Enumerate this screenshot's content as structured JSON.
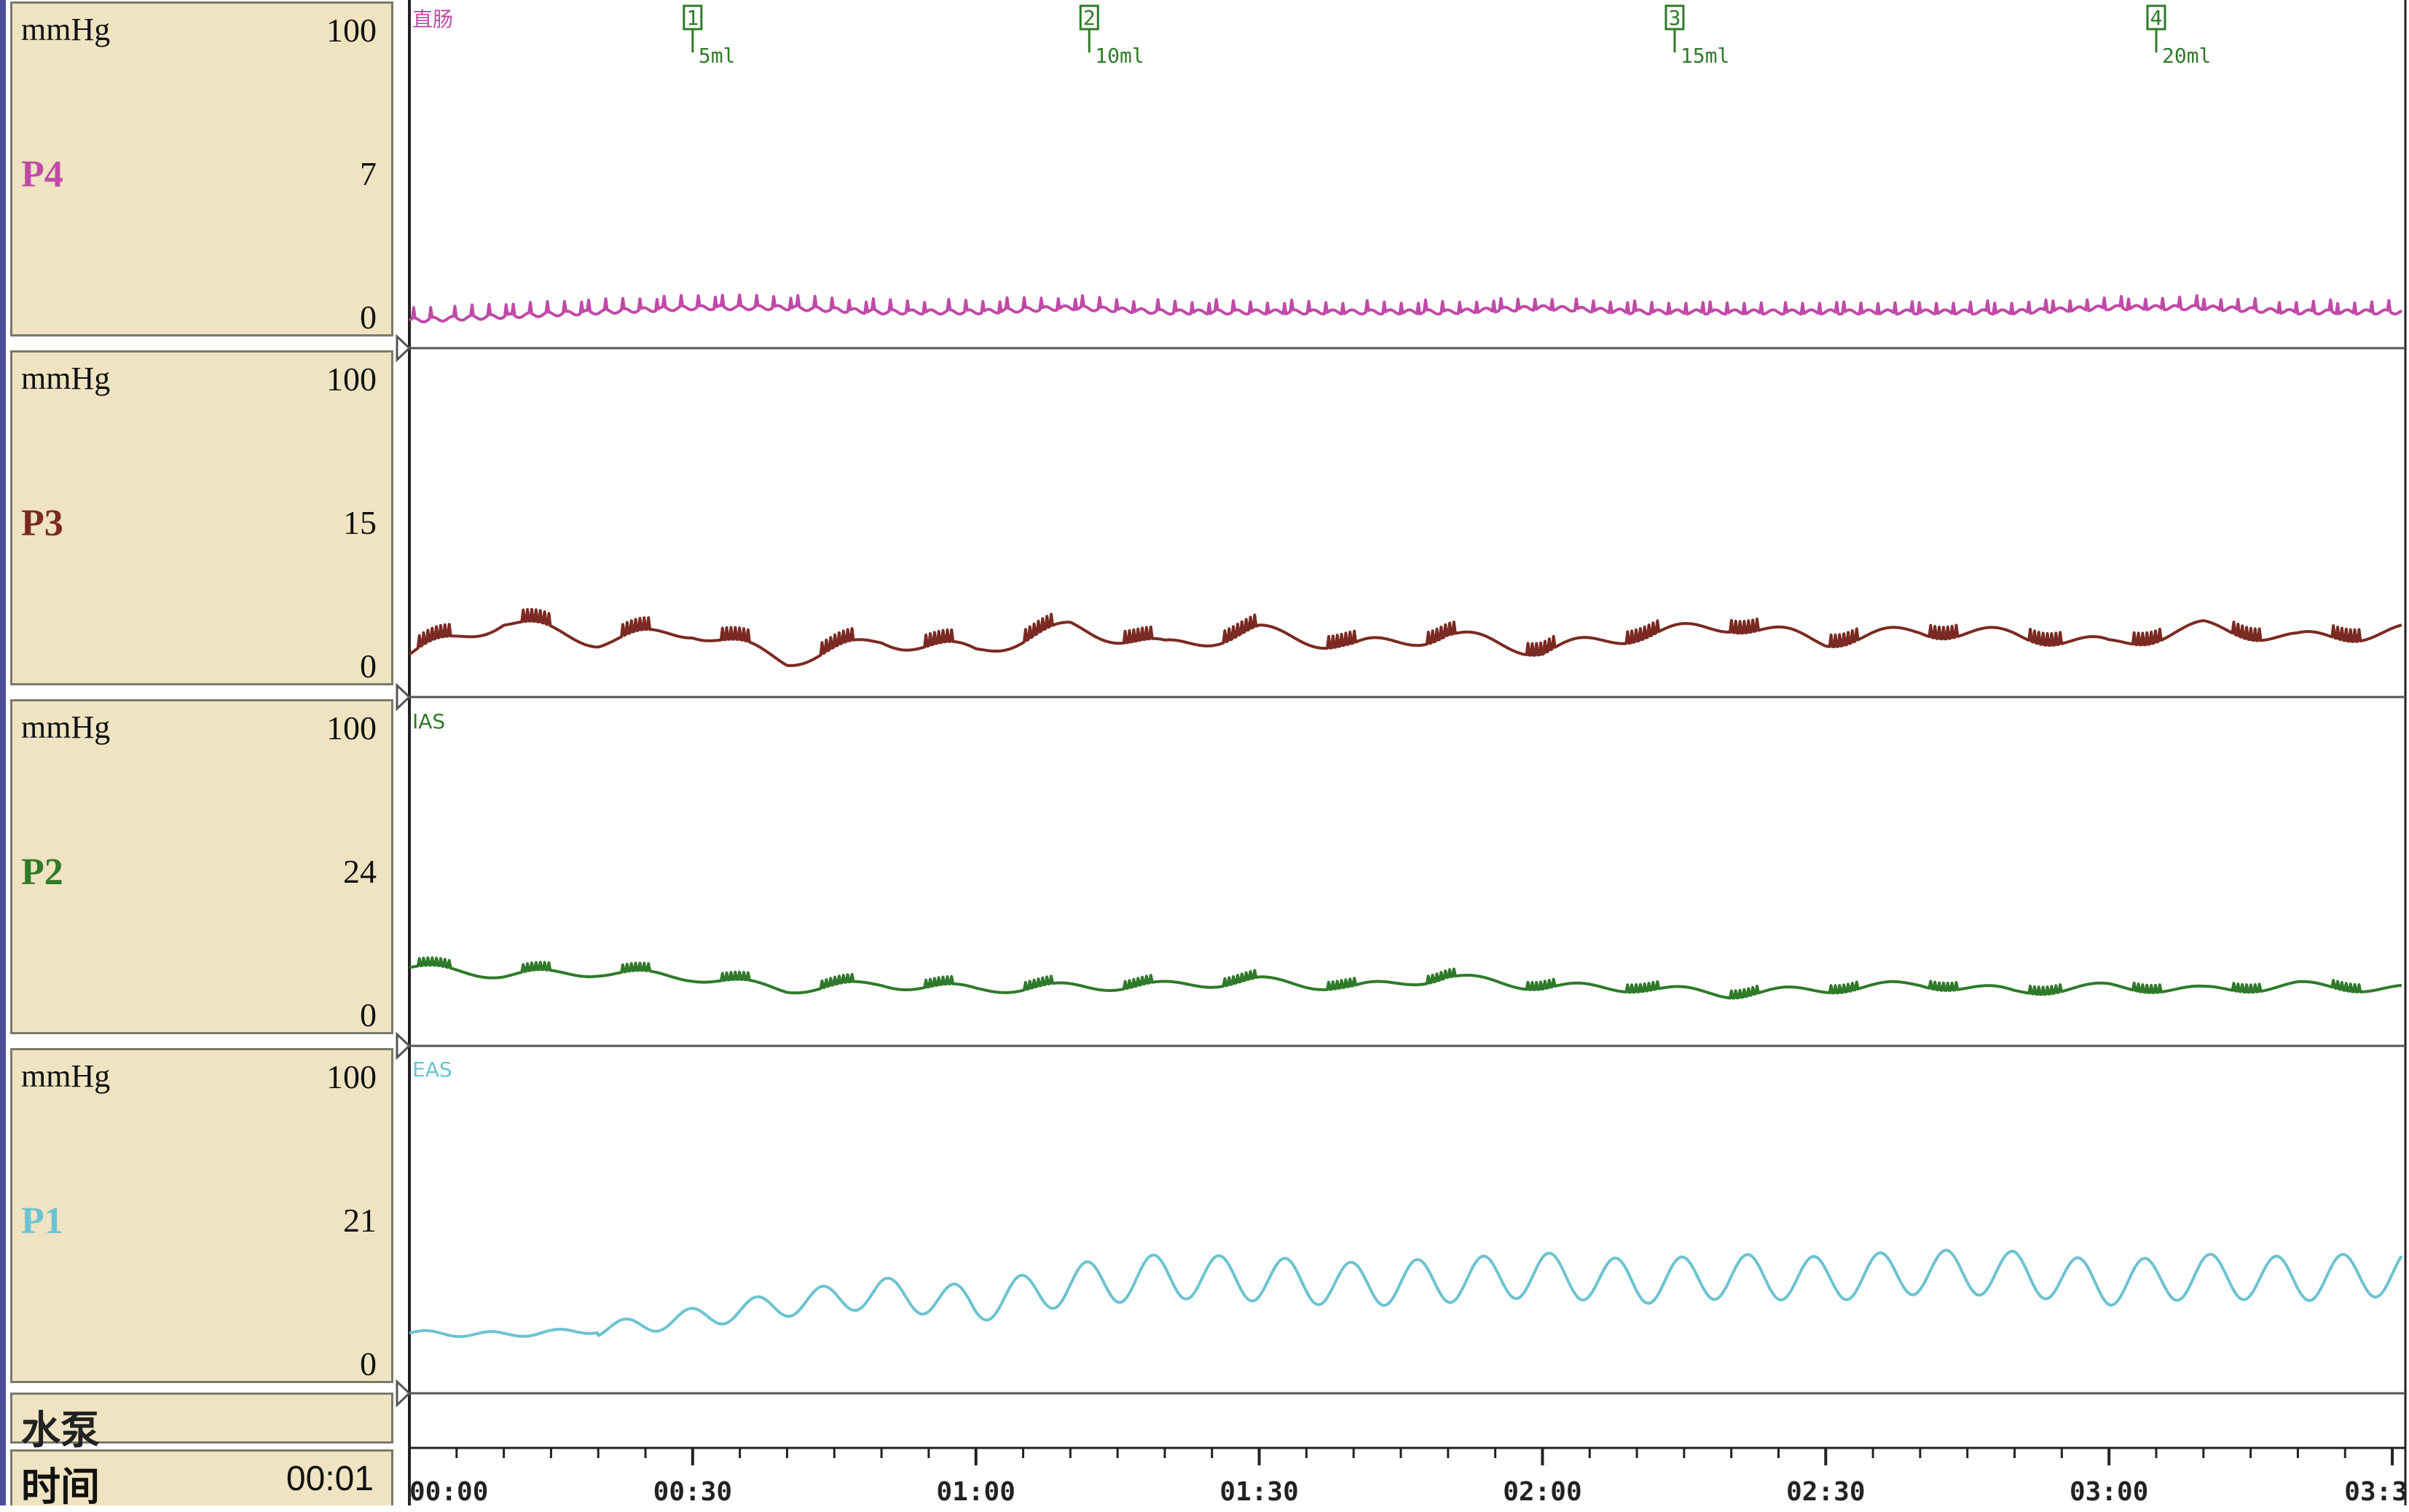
{
  "sidebar": {
    "panels": [
      {
        "unit": "mmHg",
        "max": "100",
        "mid": "7",
        "min": "0",
        "channel": "P4",
        "color": "#c04aa8"
      },
      {
        "unit": "mmHg",
        "max": "100",
        "mid": "15",
        "min": "0",
        "channel": "P3",
        "color": "#7a2a22"
      },
      {
        "unit": "mmHg",
        "max": "100",
        "mid": "24",
        "min": "0",
        "channel": "P2",
        "color": "#2f7a2a"
      },
      {
        "unit": "mmHg",
        "max": "100",
        "mid": "21",
        "min": "0",
        "channel": "P1",
        "color": "#6cc3d0"
      }
    ],
    "pump_label": "水泵",
    "time_label": "时间",
    "time_value": "00:01"
  },
  "chart_data": {
    "type": "line",
    "xlabel": "",
    "x_ticks": [
      "00:00",
      "00:30",
      "01:00",
      "01:30",
      "02:00",
      "02:30",
      "03:00",
      "03:3"
    ],
    "xlim_minutes": [
      0,
      211
    ],
    "markers": [
      {
        "id": "1",
        "label": "5ml",
        "time_min": 30
      },
      {
        "id": "2",
        "label": "10ml",
        "time_min": 72
      },
      {
        "id": "3",
        "label": "15ml",
        "time_min": 134
      },
      {
        "id": "4",
        "label": "20ml",
        "time_min": 185
      }
    ],
    "channel_annotations": [
      {
        "channel": "P4",
        "text": "直肠"
      },
      {
        "channel": "P2",
        "text": "IAS"
      },
      {
        "channel": "P1",
        "text": "EAS"
      }
    ],
    "series": [
      {
        "name": "P4",
        "ylim": [
          0,
          7
        ],
        "color": "#c04aa8",
        "x": [
          0,
          10,
          20,
          30,
          40,
          50,
          60,
          70,
          80,
          90,
          100,
          110,
          120,
          130,
          140,
          150,
          160,
          170,
          180,
          190,
          200,
          211
        ],
        "y": [
          0,
          0.1,
          0.2,
          0.3,
          0.3,
          0.2,
          0.2,
          0.3,
          0.2,
          0.2,
          0.2,
          0.2,
          0.3,
          0.2,
          0.2,
          0.2,
          0.2,
          0.2,
          0.3,
          0.3,
          0.2,
          0.2
        ]
      },
      {
        "name": "P3",
        "ylim": [
          0,
          15
        ],
        "color": "#7a2a22",
        "x": [
          0,
          10,
          20,
          30,
          40,
          50,
          60,
          70,
          80,
          90,
          100,
          110,
          120,
          130,
          140,
          150,
          160,
          170,
          180,
          190,
          200,
          211
        ],
        "y": [
          0.8,
          2.5,
          1.5,
          2.0,
          0.5,
          1.5,
          1.0,
          2.2,
          1.2,
          2.0,
          1.2,
          1.8,
          1.0,
          1.8,
          2.3,
          1.5,
          2.0,
          1.8,
          1.3,
          2.2,
          1.6,
          2.0
        ]
      },
      {
        "name": "P2",
        "ylim": [
          0,
          24
        ],
        "color": "#2f7a2a",
        "x": [
          0,
          10,
          20,
          30,
          40,
          50,
          60,
          70,
          80,
          90,
          100,
          110,
          120,
          130,
          140,
          150,
          160,
          170,
          180,
          190,
          200,
          211
        ],
        "y": [
          4.2,
          3.6,
          3.8,
          3.4,
          2.4,
          2.8,
          2.4,
          2.6,
          2.7,
          3.1,
          2.5,
          3.4,
          2.6,
          2.5,
          2.0,
          2.4,
          2.8,
          2.2,
          2.6,
          2.3,
          2.7,
          2.4
        ]
      },
      {
        "name": "P1",
        "ylim": [
          0,
          21
        ],
        "color": "#6cc3d0",
        "x": [
          0,
          10,
          20,
          30,
          40,
          50,
          60,
          70,
          80,
          90,
          100,
          110,
          120,
          130,
          140,
          150,
          160,
          170,
          180,
          190,
          200,
          211
        ],
        "y": [
          2.5,
          2.4,
          2.7,
          3.6,
          4.6,
          5.4,
          4.6,
          6.0,
          6.6,
          6.4,
          6.0,
          6.3,
          6.7,
          6.2,
          6.6,
          6.4,
          6.9,
          6.8,
          6.1,
          6.6,
          6.4,
          6.8
        ]
      }
    ]
  }
}
